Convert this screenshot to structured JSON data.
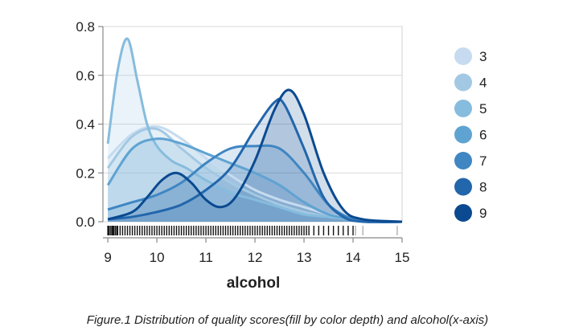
{
  "caption": "Figure.1 Distribution of quality scores(fill by color depth) and alcohol(x-axis)",
  "chart_data": {
    "type": "area",
    "xlabel": "alcohol",
    "ylabel": "",
    "xlim": [
      8.9,
      15.0
    ],
    "ylim": [
      0,
      0.8
    ],
    "x_ticks": [
      "9",
      "10",
      "11",
      "12",
      "13",
      "14",
      "15"
    ],
    "y_ticks": [
      "0.0",
      "0.2",
      "0.4",
      "0.6",
      "0.8"
    ],
    "grid": "horizontal",
    "legend_position": "right",
    "series": [
      {
        "name": "3",
        "color": "#c6dbef",
        "x": [
          9.0,
          9.5,
          10.0,
          10.5,
          11.0,
          11.5,
          12.0,
          12.5,
          13.0,
          13.5,
          14.0,
          14.5,
          15.0
        ],
        "y": [
          0.26,
          0.36,
          0.39,
          0.34,
          0.26,
          0.19,
          0.13,
          0.09,
          0.06,
          0.03,
          0.01,
          0.0,
          0.0
        ]
      },
      {
        "name": "4",
        "color": "#a3c8e3",
        "x": [
          9.0,
          9.5,
          10.0,
          10.5,
          11.0,
          11.5,
          12.0,
          12.5,
          13.0,
          13.5,
          14.0,
          14.5,
          15.0
        ],
        "y": [
          0.22,
          0.35,
          0.38,
          0.3,
          0.22,
          0.16,
          0.11,
          0.07,
          0.04,
          0.02,
          0.01,
          0.0,
          0.0
        ]
      },
      {
        "name": "5",
        "color": "#86bcdd",
        "x": [
          9.0,
          9.2,
          9.4,
          9.6,
          9.8,
          10.0,
          10.3,
          10.6,
          11.0,
          11.5,
          12.0,
          12.5,
          13.0,
          13.5,
          14.0,
          14.5,
          15.0
        ],
        "y": [
          0.32,
          0.62,
          0.75,
          0.58,
          0.4,
          0.31,
          0.25,
          0.22,
          0.17,
          0.12,
          0.09,
          0.06,
          0.03,
          0.02,
          0.01,
          0.0,
          0.0
        ]
      },
      {
        "name": "6",
        "color": "#5fa3d2",
        "x": [
          9.0,
          9.5,
          10.0,
          10.5,
          11.0,
          11.5,
          12.0,
          12.5,
          13.0,
          13.5,
          14.0,
          14.5,
          15.0
        ],
        "y": [
          0.15,
          0.3,
          0.34,
          0.32,
          0.28,
          0.24,
          0.2,
          0.15,
          0.08,
          0.03,
          0.01,
          0.0,
          0.0
        ]
      },
      {
        "name": "7",
        "color": "#3f86c2",
        "x": [
          9.0,
          9.5,
          10.0,
          10.5,
          11.0,
          11.5,
          12.0,
          12.5,
          13.0,
          13.5,
          14.0,
          14.5,
          15.0
        ],
        "y": [
          0.05,
          0.08,
          0.11,
          0.16,
          0.24,
          0.3,
          0.31,
          0.3,
          0.2,
          0.07,
          0.01,
          0.0,
          0.0
        ]
      },
      {
        "name": "8",
        "color": "#2266ac",
        "x": [
          9.0,
          9.5,
          10.0,
          10.5,
          11.0,
          11.5,
          12.0,
          12.4,
          12.6,
          13.0,
          13.4,
          13.8,
          14.2,
          15.0
        ],
        "y": [
          0.01,
          0.02,
          0.04,
          0.07,
          0.13,
          0.22,
          0.38,
          0.49,
          0.48,
          0.3,
          0.1,
          0.02,
          0.0,
          0.0
        ]
      },
      {
        "name": "9",
        "color": "#0b4a90",
        "x": [
          9.0,
          9.5,
          9.8,
          10.1,
          10.4,
          10.7,
          11.0,
          11.3,
          11.6,
          12.0,
          12.4,
          12.7,
          13.0,
          13.4,
          13.8,
          14.2,
          15.0
        ],
        "y": [
          0.01,
          0.04,
          0.1,
          0.17,
          0.2,
          0.16,
          0.09,
          0.06,
          0.1,
          0.25,
          0.46,
          0.54,
          0.44,
          0.2,
          0.05,
          0.01,
          0.0
        ]
      }
    ],
    "rug": [
      9.0,
      9.02,
      9.05,
      9.08,
      9.1,
      9.12,
      9.15,
      9.18,
      9.2,
      9.25,
      9.3,
      9.35,
      9.4,
      9.45,
      9.5,
      9.55,
      9.6,
      9.65,
      9.7,
      9.75,
      9.8,
      9.85,
      9.9,
      9.95,
      10.0,
      10.05,
      10.1,
      10.15,
      10.2,
      10.25,
      10.3,
      10.35,
      10.4,
      10.45,
      10.5,
      10.55,
      10.6,
      10.65,
      10.7,
      10.75,
      10.8,
      10.85,
      10.9,
      10.95,
      11.0,
      11.05,
      11.1,
      11.15,
      11.2,
      11.25,
      11.3,
      11.35,
      11.4,
      11.45,
      11.5,
      11.55,
      11.6,
      11.65,
      11.7,
      11.75,
      11.8,
      11.85,
      11.9,
      11.95,
      12.0,
      12.05,
      12.1,
      12.15,
      12.2,
      12.25,
      12.3,
      12.35,
      12.4,
      12.45,
      12.5,
      12.55,
      12.6,
      12.65,
      12.7,
      12.75,
      12.8,
      12.85,
      12.9,
      12.95,
      13.0,
      13.05,
      13.1,
      13.2,
      13.3,
      13.4,
      13.5,
      13.6,
      13.7,
      13.8,
      13.9,
      14.0,
      14.05,
      14.2,
      14.9
    ]
  }
}
